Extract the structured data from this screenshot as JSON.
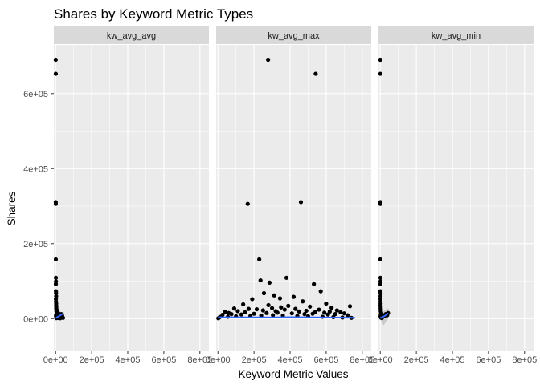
{
  "chart_data": {
    "type": "scatter",
    "title": "Shares by Keyword Metric Types",
    "xlabel": "Keyword Metric Values",
    "ylabel": "Shares",
    "xlim": [
      -10000,
      850000
    ],
    "ylim": [
      -85000,
      730000
    ],
    "x_ticks": [
      0,
      200000,
      400000,
      600000,
      800000
    ],
    "x_tick_labels": [
      "0e+00",
      "2e+05",
      "4e+05",
      "6e+05",
      "8e+05"
    ],
    "y_ticks": [
      0,
      200000,
      400000,
      600000
    ],
    "y_tick_labels": [
      "0e+00",
      "2e+05",
      "4e+05",
      "6e+05"
    ],
    "grid": true,
    "colors": {
      "panel_bg": "#ebebeb",
      "strip_bg": "#d9d9d9",
      "grid": "#ffffff",
      "points": "#000000",
      "smooth_line": "#3366ff",
      "confidence_band": "#999999"
    },
    "facets": [
      {
        "label": "kw_avg_avg",
        "points": [
          {
            "x": 500,
            "y": 690400
          },
          {
            "x": 800,
            "y": 652900
          },
          {
            "x": 600,
            "y": 310800
          },
          {
            "x": 900,
            "y": 306100
          },
          {
            "x": 1000,
            "y": 158000
          },
          {
            "x": 1500,
            "y": 109000
          },
          {
            "x": 2000,
            "y": 99000
          },
          {
            "x": 1200,
            "y": 92000
          },
          {
            "x": 1800,
            "y": 73000
          },
          {
            "x": 2500,
            "y": 68000
          },
          {
            "x": 3000,
            "y": 60000
          },
          {
            "x": 1600,
            "y": 52000
          },
          {
            "x": 2200,
            "y": 45000
          },
          {
            "x": 3200,
            "y": 40000
          },
          {
            "x": 2800,
            "y": 35000
          },
          {
            "x": 4000,
            "y": 31000
          },
          {
            "x": 3500,
            "y": 27000
          },
          {
            "x": 5000,
            "y": 24000
          },
          {
            "x": 4500,
            "y": 20000
          },
          {
            "x": 6000,
            "y": 17000
          },
          {
            "x": 7500,
            "y": 14000
          },
          {
            "x": 9000,
            "y": 12000
          },
          {
            "x": 11000,
            "y": 10000
          },
          {
            "x": 13000,
            "y": 9000
          },
          {
            "x": 16000,
            "y": 7000
          },
          {
            "x": 19000,
            "y": 6000
          },
          {
            "x": 23000,
            "y": 5000
          },
          {
            "x": 27000,
            "y": 4000
          },
          {
            "x": 31000,
            "y": 12000
          },
          {
            "x": 36000,
            "y": 8000
          },
          {
            "x": 41000,
            "y": 2000
          },
          {
            "x": 8000,
            "y": 3000
          },
          {
            "x": 12000,
            "y": 2000
          },
          {
            "x": 18000,
            "y": 1500
          },
          {
            "x": 25000,
            "y": 1000
          },
          {
            "x": 4000,
            "y": 1200
          },
          {
            "x": 3000,
            "y": 5000
          },
          {
            "x": 2000,
            "y": 8000
          },
          {
            "x": 6500,
            "y": 22000
          },
          {
            "x": 14000,
            "y": 15000
          }
        ],
        "smooth": [
          {
            "x": 0,
            "y": 1000
          },
          {
            "x": 5000,
            "y": 2500
          },
          {
            "x": 10000,
            "y": 4500
          },
          {
            "x": 20000,
            "y": 7000
          },
          {
            "x": 30000,
            "y": 10000
          },
          {
            "x": 40000,
            "y": 12000
          },
          {
            "x": 45000,
            "y": 14000
          }
        ],
        "band": {
          "upper": [
            1000,
            3500,
            6500,
            10000,
            13500,
            16500,
            19000
          ],
          "lower": [
            1000,
            1500,
            2500,
            4000,
            6500,
            7500,
            9000
          ]
        }
      },
      {
        "label": "kw_avg_max",
        "points": [
          {
            "x": 278000,
            "y": 690400
          },
          {
            "x": 542000,
            "y": 652900
          },
          {
            "x": 460000,
            "y": 310800
          },
          {
            "x": 165000,
            "y": 306100
          },
          {
            "x": 229000,
            "y": 158000
          },
          {
            "x": 380000,
            "y": 109000
          },
          {
            "x": 236000,
            "y": 102000
          },
          {
            "x": 286000,
            "y": 96000
          },
          {
            "x": 532000,
            "y": 92000
          },
          {
            "x": 570000,
            "y": 73000
          },
          {
            "x": 255000,
            "y": 68000
          },
          {
            "x": 312000,
            "y": 62000
          },
          {
            "x": 420000,
            "y": 58000
          },
          {
            "x": 190000,
            "y": 52000
          },
          {
            "x": 344000,
            "y": 54000
          },
          {
            "x": 470000,
            "y": 46000
          },
          {
            "x": 600000,
            "y": 40000
          },
          {
            "x": 140000,
            "y": 38000
          },
          {
            "x": 280000,
            "y": 36000
          },
          {
            "x": 390000,
            "y": 34000
          },
          {
            "x": 510000,
            "y": 32000
          },
          {
            "x": 630000,
            "y": 29000
          },
          {
            "x": 732000,
            "y": 33000
          },
          {
            "x": 90000,
            "y": 27000
          },
          {
            "x": 170000,
            "y": 26000
          },
          {
            "x": 215000,
            "y": 25000
          },
          {
            "x": 300000,
            "y": 28000
          },
          {
            "x": 350000,
            "y": 30000
          },
          {
            "x": 430000,
            "y": 26000
          },
          {
            "x": 560000,
            "y": 24000
          },
          {
            "x": 660000,
            "y": 22000
          },
          {
            "x": 40000,
            "y": 18000
          },
          {
            "x": 60000,
            "y": 15000
          },
          {
            "x": 110000,
            "y": 20000
          },
          {
            "x": 150000,
            "y": 17000
          },
          {
            "x": 250000,
            "y": 22000
          },
          {
            "x": 320000,
            "y": 20000
          },
          {
            "x": 370000,
            "y": 24000
          },
          {
            "x": 450000,
            "y": 19000
          },
          {
            "x": 490000,
            "y": 21000
          },
          {
            "x": 540000,
            "y": 18000
          },
          {
            "x": 590000,
            "y": 16000
          },
          {
            "x": 620000,
            "y": 19000
          },
          {
            "x": 680000,
            "y": 17000
          },
          {
            "x": 700000,
            "y": 14000
          },
          {
            "x": 25000,
            "y": 10000
          },
          {
            "x": 75000,
            "y": 12000
          },
          {
            "x": 130000,
            "y": 11000
          },
          {
            "x": 200000,
            "y": 13000
          },
          {
            "x": 270000,
            "y": 15000
          },
          {
            "x": 330000,
            "y": 16000
          },
          {
            "x": 410000,
            "y": 14000
          },
          {
            "x": 480000,
            "y": 12000
          },
          {
            "x": 525000,
            "y": 13000
          },
          {
            "x": 610000,
            "y": 11000
          },
          {
            "x": 650000,
            "y": 12000
          },
          {
            "x": 720000,
            "y": 9000
          },
          {
            "x": 10000,
            "y": 4000
          },
          {
            "x": 55000,
            "y": 5000
          },
          {
            "x": 100000,
            "y": 6000
          },
          {
            "x": 180000,
            "y": 7000
          },
          {
            "x": 240000,
            "y": 8000
          },
          {
            "x": 305000,
            "y": 9000
          },
          {
            "x": 360000,
            "y": 8000
          },
          {
            "x": 440000,
            "y": 7000
          },
          {
            "x": 500000,
            "y": 6000
          },
          {
            "x": 580000,
            "y": 5000
          },
          {
            "x": 640000,
            "y": 4000
          },
          {
            "x": 690000,
            "y": 3000
          },
          {
            "x": 740000,
            "y": 2000
          },
          {
            "x": 2000,
            "y": 1000
          }
        ],
        "smooth": [
          {
            "x": 0,
            "y": 3500
          },
          {
            "x": 100000,
            "y": 3300
          },
          {
            "x": 200000,
            "y": 3200
          },
          {
            "x": 300000,
            "y": 3100
          },
          {
            "x": 400000,
            "y": 3800
          },
          {
            "x": 500000,
            "y": 3300
          },
          {
            "x": 600000,
            "y": 3000
          },
          {
            "x": 700000,
            "y": 2500
          },
          {
            "x": 760000,
            "y": 2300
          }
        ],
        "band": null
      },
      {
        "label": "kw_avg_min",
        "points": [
          {
            "x": 300,
            "y": 690400
          },
          {
            "x": 500,
            "y": 652900
          },
          {
            "x": 700,
            "y": 310800
          },
          {
            "x": 400,
            "y": 306100
          },
          {
            "x": 500,
            "y": 158000
          },
          {
            "x": 800,
            "y": 109000
          },
          {
            "x": 1000,
            "y": 99000
          },
          {
            "x": 600,
            "y": 92000
          },
          {
            "x": 900,
            "y": 73000
          },
          {
            "x": 1500,
            "y": 68000
          },
          {
            "x": 1200,
            "y": 60000
          },
          {
            "x": 700,
            "y": 52000
          },
          {
            "x": 1400,
            "y": 45000
          },
          {
            "x": 1800,
            "y": 40000
          },
          {
            "x": 1100,
            "y": 35000
          },
          {
            "x": 2200,
            "y": 31000
          },
          {
            "x": 2000,
            "y": 27000
          },
          {
            "x": 3000,
            "y": 24000
          },
          {
            "x": 2600,
            "y": 20000
          },
          {
            "x": 4000,
            "y": 17000
          },
          {
            "x": 5000,
            "y": 14000
          },
          {
            "x": 7000,
            "y": 12000
          },
          {
            "x": 10000,
            "y": 10000
          },
          {
            "x": 13000,
            "y": 8000
          },
          {
            "x": 17000,
            "y": 7000
          },
          {
            "x": 22000,
            "y": 6000
          },
          {
            "x": 30000,
            "y": 12000
          },
          {
            "x": 38000,
            "y": 9000
          },
          {
            "x": 43000,
            "y": 15000
          },
          {
            "x": 3500,
            "y": 3000
          },
          {
            "x": 6000,
            "y": 2000
          },
          {
            "x": 9000,
            "y": 1500
          },
          {
            "x": 1600,
            "y": 6000
          },
          {
            "x": 2400,
            "y": 9000
          }
        ],
        "smooth": [
          {
            "x": 0,
            "y": 1500
          },
          {
            "x": 5000,
            "y": 2500
          },
          {
            "x": 10000,
            "y": 3500
          },
          {
            "x": 20000,
            "y": 6000
          },
          {
            "x": 30000,
            "y": 9000
          },
          {
            "x": 40000,
            "y": 12500
          },
          {
            "x": 45000,
            "y": 14500
          }
        ],
        "band": {
          "upper": [
            5000,
            9000,
            14000,
            20000,
            24000,
            26000,
            28000
          ],
          "lower": [
            -2000,
            -6000,
            -12000,
            -18000,
            -9000,
            -2000,
            1000
          ]
        }
      }
    ]
  }
}
